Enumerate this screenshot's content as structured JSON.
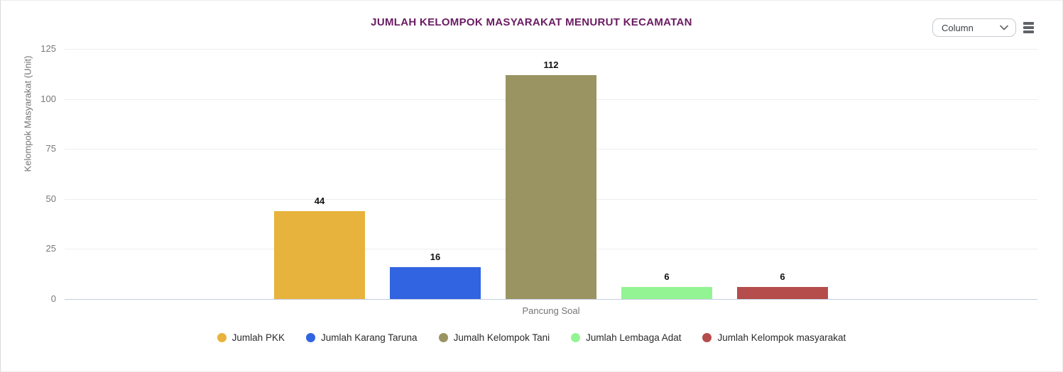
{
  "header": {
    "chart_type_selector": {
      "value": "Column"
    },
    "menu_icon": "hamburger-menu"
  },
  "chart_data": {
    "type": "bar",
    "title": "JUMLAH KELOMPOK MASYARAKAT MENURUT KECAMATAN",
    "categories": [
      "Pancung Soal"
    ],
    "series": [
      {
        "name": "Jumlah PKK",
        "values": [
          44
        ],
        "color": "#E8B33C"
      },
      {
        "name": "Jumlah Karang Taruna",
        "values": [
          16
        ],
        "color": "#3164E0"
      },
      {
        "name": "Jumalh Kelompok Tani",
        "values": [
          112
        ],
        "color": "#9A9462"
      },
      {
        "name": "Jumlah Lembaga Adat",
        "values": [
          6
        ],
        "color": "#93F493"
      },
      {
        "name": "Jumlah Kelompok masyarakat",
        "values": [
          6
        ],
        "color": "#B44D4B"
      }
    ],
    "xlabel": "",
    "ylabel": "Kelompok Masyarakat (Unit)",
    "ylim": [
      0,
      125
    ],
    "yticks": [
      0,
      25,
      50,
      75,
      100,
      125
    ],
    "grid": true,
    "legend_position": "bottom",
    "value_labels": true,
    "colors": {
      "title": "#6A1B62",
      "axis_text": "#757575",
      "gridline": "#ededed",
      "baseline": "#c3cde1"
    }
  }
}
